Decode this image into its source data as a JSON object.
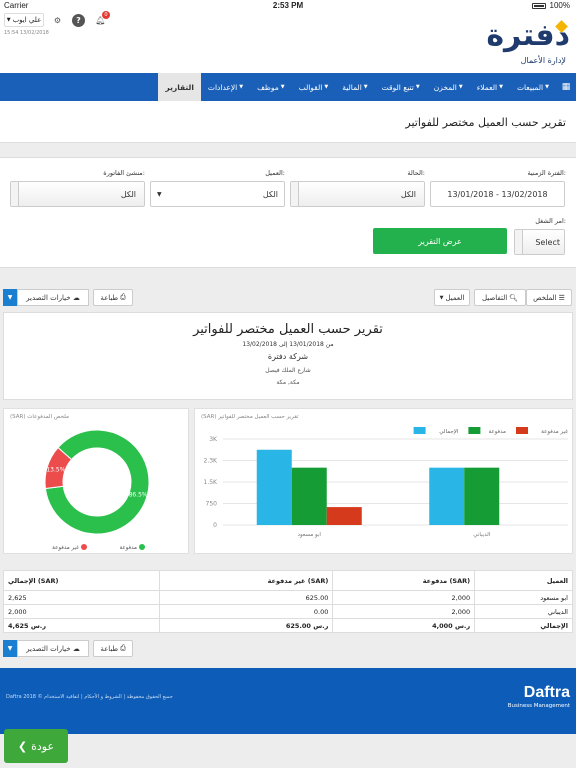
{
  "status_bar": {
    "carrier": "Carrier",
    "time": "2:53 PM",
    "battery": "100%"
  },
  "header": {
    "user_label": "علي ايوب",
    "timestamp": "15:54 13/02/2018",
    "notification_count": "0",
    "logo_text": "دفترة",
    "logo_tagline": "لإدارة الأعمال"
  },
  "nav": {
    "items": [
      {
        "label": "المبيعات"
      },
      {
        "label": "العملاء"
      },
      {
        "label": "المخزن"
      },
      {
        "label": "تتبع الوقت"
      },
      {
        "label": "المالية"
      },
      {
        "label": "القوالب"
      },
      {
        "label": "موظف"
      },
      {
        "label": "الإعدادات"
      },
      {
        "label": "التقارير"
      }
    ]
  },
  "page": {
    "title": "تقرير حسب العميل مختصر للفواتير"
  },
  "filters": {
    "period_label": "الفترة الزمنية:",
    "period_value": "13/01/2018 - 13/02/2018",
    "status_label": "الحالة:",
    "status_value": "الكل",
    "client_label": "العميل:",
    "client_value": "الكل",
    "creator_label": "منشئ الفاتورة:",
    "creator_value": "الكل",
    "job_label": "امر الشغل:",
    "job_value": "Select",
    "view_button": "عرض التقرير"
  },
  "toolbar": {
    "summary": "الملخص",
    "details": "التفاصيل",
    "client": "العميل",
    "print": "طباعة",
    "export": "خيارات التصدير"
  },
  "report": {
    "title": "تقرير حسب العميل مختصر للفواتير",
    "range": "من 13/01/2018 إلى 13/02/2018",
    "company": "شركة دفترة",
    "address1": "شارع الملك فيصل",
    "address2": "مكة, مكة"
  },
  "colors": {
    "total": "#29b6e6",
    "paid": "#169c35",
    "unpaid": "#d63a1c",
    "pie_paid": "#2bbf4c",
    "pie_unpaid": "#ec4c4c"
  },
  "chart_data": [
    {
      "type": "bar",
      "title": "(SAR) تقرير حسب العميل مختصر للفواتير",
      "categories": [
        "ابو مسعود",
        "الديباني"
      ],
      "series": [
        {
          "name": "الإجمالي",
          "values": [
            2625,
            2000
          ]
        },
        {
          "name": "مدفوعة",
          "values": [
            2000,
            2000
          ]
        },
        {
          "name": "غير مدفوعة",
          "values": [
            625,
            0
          ]
        }
      ],
      "yticks": [
        "0",
        "750",
        "1.5K",
        "2.3K",
        "3K"
      ],
      "ylim": [
        0,
        3000
      ],
      "legend": "top-right"
    },
    {
      "type": "pie",
      "title": "(SAR) ملخص المدفوعات",
      "slices": [
        {
          "name": "مدفوعة",
          "value": 86.5,
          "label": "86.5%"
        },
        {
          "name": "غير مدفوعة",
          "value": 13.5,
          "label": "13.5%"
        }
      ],
      "legend": "bottom"
    }
  ],
  "table": {
    "headers": [
      "العميل",
      "مدفوعة (SAR)",
      "غير مدفوعة (SAR)",
      "الإجمالي (SAR)"
    ],
    "rows": [
      [
        "ابو مسعود",
        "2,000",
        "625.00",
        "2,625"
      ],
      [
        "الديباني",
        "2,000",
        "0.00",
        "2,000"
      ]
    ],
    "total": [
      "الإجمالي",
      "4,000 ر.س",
      "625.00 ر.س",
      "4,625 ر.س"
    ]
  },
  "footer": {
    "copyright": "Daftra 2018 © جميع الحقوق محفوظة | الشروط و الأحكام | اتفاقية الاستخدام",
    "brand": "Daftra",
    "brand_sub": "Business Management"
  },
  "back_button": "عودة"
}
